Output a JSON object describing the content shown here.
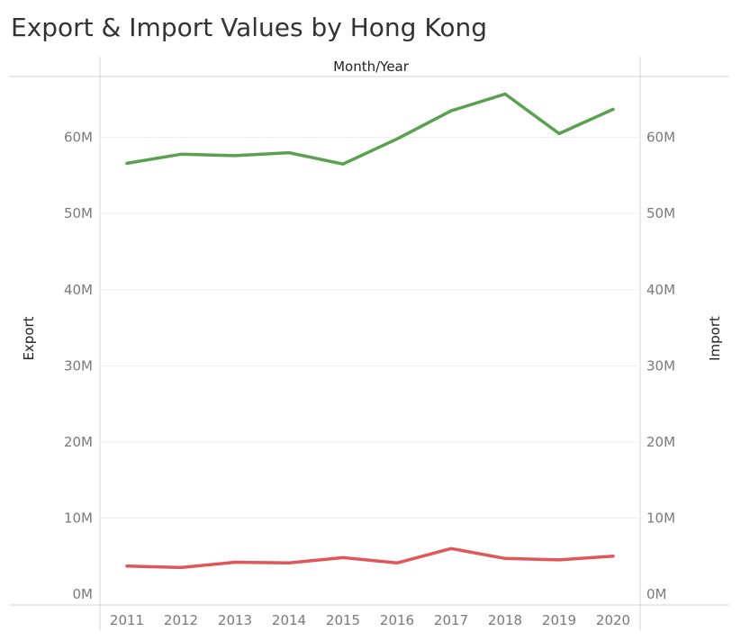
{
  "chart_data": {
    "type": "line",
    "title": "Export & Import Values by Hong Kong",
    "xlabel": "Month/Year",
    "ylabel_left": "Export",
    "ylabel_right": "Import",
    "categories": [
      "2011",
      "2012",
      "2013",
      "2014",
      "2015",
      "2016",
      "2017",
      "2018",
      "2019",
      "2020"
    ],
    "ylim": [
      0,
      68000000
    ],
    "y_ticks": [
      0,
      10000000,
      20000000,
      30000000,
      40000000,
      50000000,
      60000000
    ],
    "y_tick_labels": [
      "0M",
      "10M",
      "20M",
      "30M",
      "40M",
      "50M",
      "60M"
    ],
    "series": [
      {
        "color": "#59a14f",
        "values": [
          56600000,
          57800000,
          57600000,
          58000000,
          56500000,
          59800000,
          63500000,
          65700000,
          60500000,
          63700000
        ]
      },
      {
        "color": "#e15759",
        "values": [
          3700000,
          3500000,
          4200000,
          4100000,
          4800000,
          4100000,
          6000000,
          4700000,
          4500000,
          5000000
        ]
      }
    ],
    "grid": true
  }
}
